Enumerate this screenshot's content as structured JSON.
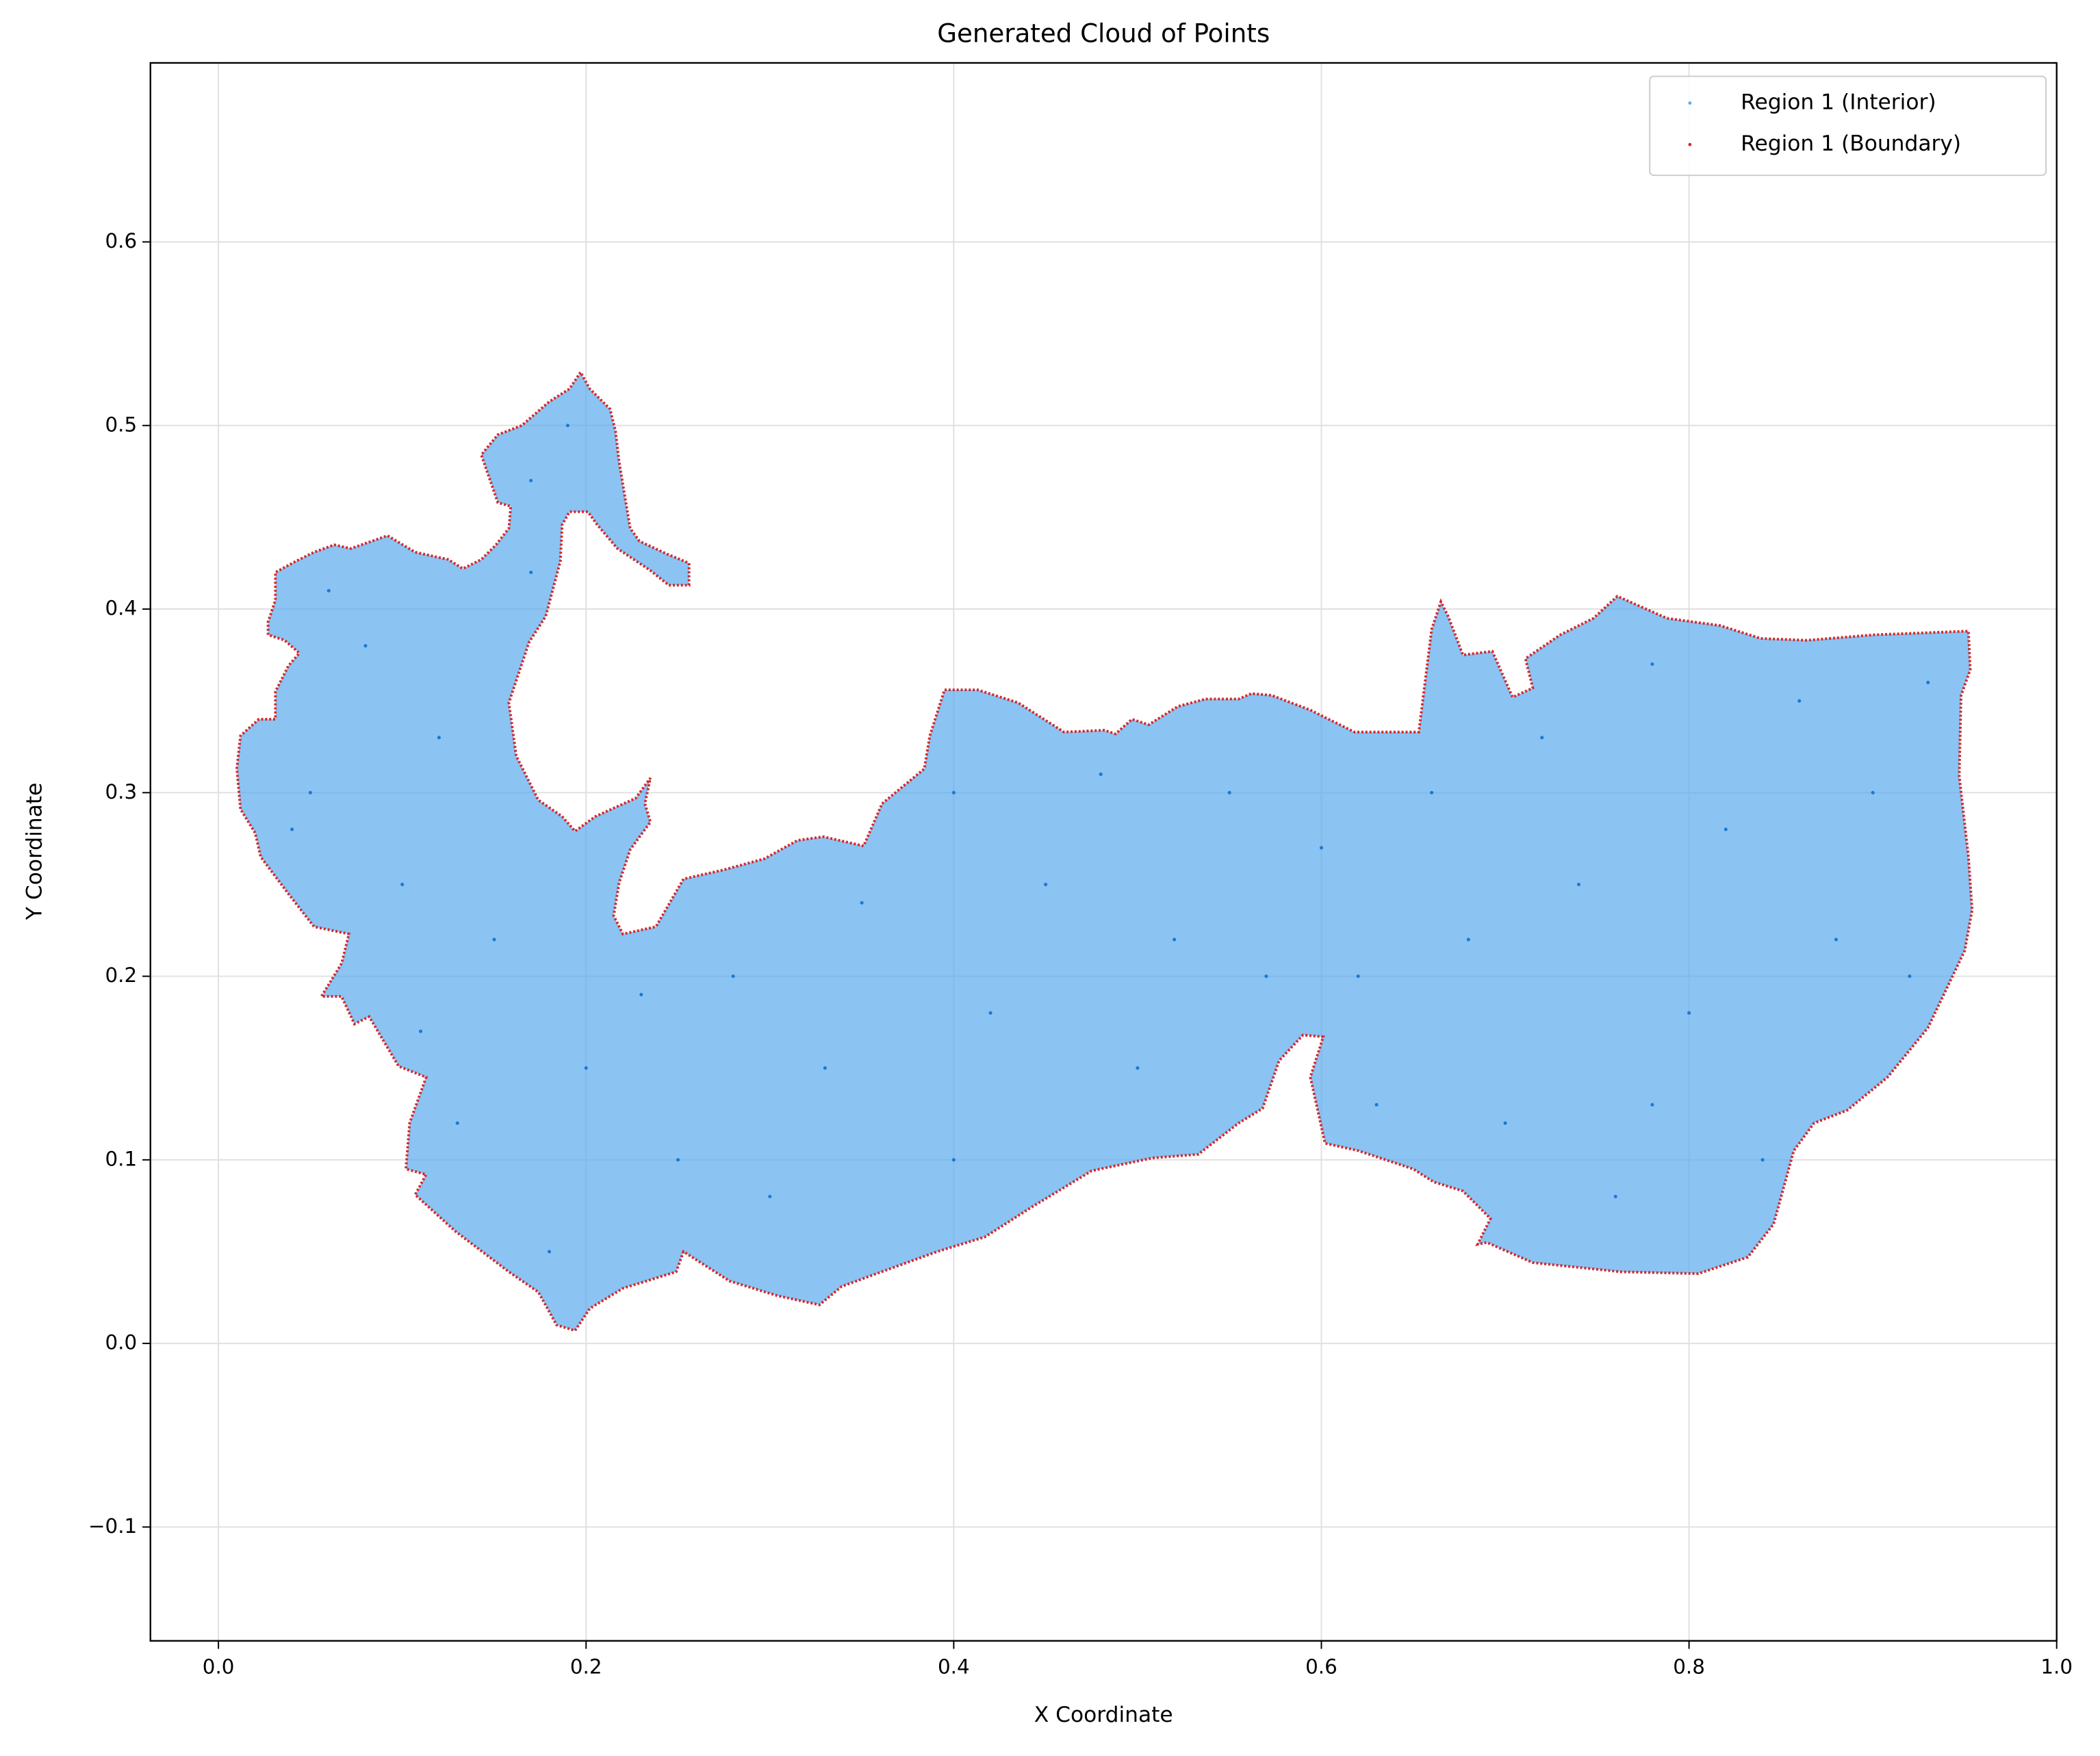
{
  "chart_data": {
    "type": "scatter",
    "title": "Generated Cloud of Points",
    "x_label": "X Coordinate",
    "y_label": "Y Coordinate",
    "xlim": [
      -0.037,
      1.0
    ],
    "ylim": [
      -0.162,
      0.6975
    ],
    "xticks": [
      {
        "value": 0,
        "label": "0.0"
      },
      0.2,
      0.4,
      0.6,
      0.8,
      {
        "value": 1,
        "label": "1.0"
      }
    ],
    "yticks": [
      {
        "value": -0.1,
        "label": "−0.1"
      },
      {
        "value": 0,
        "label": "0.0"
      },
      0.1,
      0.2,
      0.3,
      0.4,
      0.5,
      0.6
    ],
    "grid": true,
    "legend": "upper right",
    "series": [
      {
        "name": "Region 1 (Interior)",
        "color": "#5aa9ec",
        "x": [
          0.05,
          0.08,
          0.1,
          0.12,
          0.06,
          0.15,
          0.13,
          0.17,
          0.19,
          0.17,
          0.2,
          0.18,
          0.25,
          0.28,
          0.3,
          0.33,
          0.35,
          0.4,
          0.42,
          0.4,
          0.45,
          0.48,
          0.5,
          0.52,
          0.55,
          0.57,
          0.6,
          0.62,
          0.63,
          0.66,
          0.68,
          0.7,
          0.72,
          0.74,
          0.76,
          0.78,
          0.8,
          0.82,
          0.84,
          0.86,
          0.88,
          0.9,
          0.92,
          0.93,
          0.78,
          0.11,
          0.04,
          0.23
        ],
        "y": [
          0.3,
          0.38,
          0.25,
          0.33,
          0.41,
          0.22,
          0.12,
          0.47,
          0.5,
          0.42,
          0.15,
          0.05,
          0.1,
          0.2,
          0.08,
          0.15,
          0.24,
          0.3,
          0.18,
          0.1,
          0.25,
          0.31,
          0.15,
          0.22,
          0.3,
          0.2,
          0.27,
          0.2,
          0.13,
          0.3,
          0.22,
          0.12,
          0.33,
          0.25,
          0.08,
          0.37,
          0.18,
          0.28,
          0.1,
          0.35,
          0.22,
          0.3,
          0.2,
          0.36,
          0.13,
          0.17,
          0.28,
          0.19
        ]
      },
      {
        "name": "Region 1 (Boundary)",
        "color": "#d62728",
        "x": [
          0.01,
          0.012,
          0.022,
          0.031,
          0.031,
          0.038,
          0.044,
          0.036,
          0.027,
          0.027,
          0.031,
          0.031,
          0.042,
          0.052,
          0.063,
          0.072,
          0.092,
          0.107,
          0.125,
          0.133,
          0.143,
          0.151,
          0.158,
          0.159,
          0.152,
          0.143,
          0.152,
          0.165,
          0.18,
          0.191,
          0.197,
          0.202,
          0.213,
          0.216,
          0.218,
          0.224,
          0.229,
          0.244,
          0.256,
          0.256,
          0.245,
          0.235,
          0.217,
          0.206,
          0.201,
          0.191,
          0.187,
          0.186,
          0.178,
          0.169,
          0.158,
          0.162,
          0.174,
          0.187,
          0.194,
          0.205,
          0.227,
          0.235,
          0.232,
          0.235,
          0.224,
          0.218,
          0.215,
          0.22,
          0.238,
          0.253,
          0.275,
          0.297,
          0.315,
          0.329,
          0.351,
          0.361,
          0.384,
          0.387,
          0.395,
          0.413,
          0.435,
          0.46,
          0.482,
          0.488,
          0.497,
          0.506,
          0.522,
          0.537,
          0.555,
          0.562,
          0.573,
          0.594,
          0.618,
          0.653,
          0.66,
          0.665,
          0.669,
          0.677,
          0.693,
          0.704,
          0.715,
          0.711,
          0.73,
          0.748,
          0.761,
          0.788,
          0.817,
          0.839,
          0.864,
          0.901,
          0.952,
          0.953,
          0.948,
          0.947,
          0.952,
          0.954,
          0.95,
          0.93,
          0.908,
          0.886,
          0.868,
          0.857,
          0.846,
          0.832,
          0.805,
          0.763,
          0.715,
          0.69,
          0.685,
          0.692,
          0.677,
          0.661,
          0.65,
          0.62,
          0.602,
          0.594,
          0.601,
          0.59,
          0.577,
          0.568,
          0.555,
          0.533,
          0.508,
          0.475,
          0.442,
          0.417,
          0.391,
          0.358,
          0.339,
          0.327,
          0.304,
          0.278,
          0.253,
          0.249,
          0.22,
          0.202,
          0.194,
          0.184,
          0.174,
          0.158,
          0.129,
          0.107,
          0.113,
          0.102,
          0.104,
          0.113,
          0.098,
          0.082,
          0.074,
          0.067,
          0.056,
          0.067,
          0.071,
          0.052,
          0.038,
          0.023,
          0.02,
          0.012
        ],
        "y": [
          0.313,
          0.331,
          0.34,
          0.34,
          0.355,
          0.369,
          0.376,
          0.383,
          0.386,
          0.393,
          0.405,
          0.42,
          0.426,
          0.431,
          0.435,
          0.433,
          0.44,
          0.431,
          0.427,
          0.422,
          0.427,
          0.435,
          0.444,
          0.456,
          0.458,
          0.484,
          0.495,
          0.5,
          0.513,
          0.52,
          0.529,
          0.52,
          0.509,
          0.497,
          0.48,
          0.444,
          0.437,
          0.43,
          0.425,
          0.413,
          0.413,
          0.421,
          0.433,
          0.446,
          0.453,
          0.453,
          0.446,
          0.426,
          0.396,
          0.382,
          0.349,
          0.32,
          0.296,
          0.287,
          0.279,
          0.287,
          0.297,
          0.308,
          0.294,
          0.284,
          0.269,
          0.251,
          0.233,
          0.223,
          0.227,
          0.253,
          0.258,
          0.264,
          0.274,
          0.276,
          0.271,
          0.294,
          0.313,
          0.331,
          0.356,
          0.356,
          0.349,
          0.333,
          0.334,
          0.332,
          0.34,
          0.337,
          0.347,
          0.351,
          0.351,
          0.354,
          0.353,
          0.345,
          0.333,
          0.333,
          0.389,
          0.404,
          0.396,
          0.375,
          0.377,
          0.352,
          0.357,
          0.373,
          0.386,
          0.395,
          0.407,
          0.395,
          0.391,
          0.384,
          0.383,
          0.386,
          0.388,
          0.367,
          0.353,
          0.309,
          0.265,
          0.236,
          0.214,
          0.172,
          0.145,
          0.127,
          0.12,
          0.105,
          0.065,
          0.047,
          0.038,
          0.039,
          0.044,
          0.055,
          0.054,
          0.068,
          0.083,
          0.088,
          0.095,
          0.105,
          0.109,
          0.145,
          0.167,
          0.168,
          0.154,
          0.128,
          0.12,
          0.103,
          0.101,
          0.094,
          0.074,
          0.058,
          0.05,
          0.038,
          0.031,
          0.021,
          0.026,
          0.034,
          0.05,
          0.039,
          0.03,
          0.019,
          0.007,
          0.01,
          0.028,
          0.039,
          0.061,
          0.081,
          0.092,
          0.095,
          0.12,
          0.145,
          0.151,
          0.178,
          0.174,
          0.189,
          0.189,
          0.207,
          0.223,
          0.227,
          0.245,
          0.265,
          0.278,
          0.291
        ]
      }
    ]
  }
}
